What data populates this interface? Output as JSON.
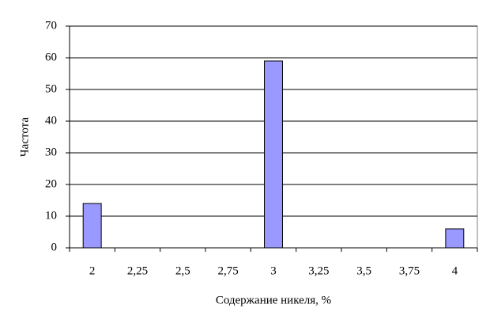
{
  "chart_data": {
    "type": "bar",
    "x_label": "Содержание никеля, %",
    "y_label": "Частота",
    "categories": [
      "2",
      "2,25",
      "2,5",
      "2,75",
      "3",
      "3,25",
      "3,5",
      "3,75",
      "4"
    ],
    "values": [
      14,
      0,
      0,
      0,
      59,
      0,
      0,
      0,
      6
    ],
    "color": "#9999ff",
    "ylim": [
      0,
      70
    ],
    "yticks": [
      0,
      10,
      20,
      30,
      40,
      50,
      60,
      70
    ],
    "grid": true
  }
}
